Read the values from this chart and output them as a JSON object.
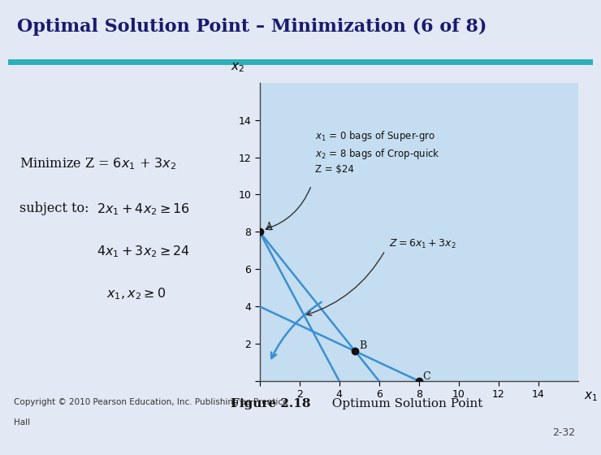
{
  "title": "Optimal Solution Point – Minimization (6 of 8)",
  "title_color": "#1a1a6e",
  "title_bg": "#dde6f5",
  "header_line_color": "#2ab0b8",
  "slide_bg": "#e2e8f4",
  "chart_bg": "#c5ddf0",
  "xlim": [
    0,
    16
  ],
  "ylim": [
    0,
    16
  ],
  "xticks": [
    0,
    2,
    4,
    6,
    8,
    10,
    12,
    14
  ],
  "yticks": [
    0,
    2,
    4,
    6,
    8,
    10,
    12,
    14
  ],
  "xlabel": "$x_1$",
  "ylabel": "$x_2$",
  "point_A": [
    0,
    8
  ],
  "point_B": [
    4.8,
    1.6
  ],
  "point_C": [
    8,
    0
  ],
  "annotation_line1": "$x_1$ = 0 bags of Super-gro",
  "annotation_line2": "$x_2$ = 8 bags of Crop-quick",
  "annotation_line3": "Z = $24",
  "obj_label": "$Z = 6x_1 + 3x_2$",
  "fig_label_bold": "Figure 2.18",
  "fig_label_rest": "   Optimum Solution Point",
  "copyright": "Copyright © 2010 Pearson Education, Inc. Publishing as Prentice\nHall",
  "page_num": "2-32",
  "constraint_line_color": "#3a90d0",
  "obj_line_color": "#3a90d0",
  "point_color": "#111111",
  "arrow_color": "#3a90d0",
  "black_arrow_color": "#333333"
}
